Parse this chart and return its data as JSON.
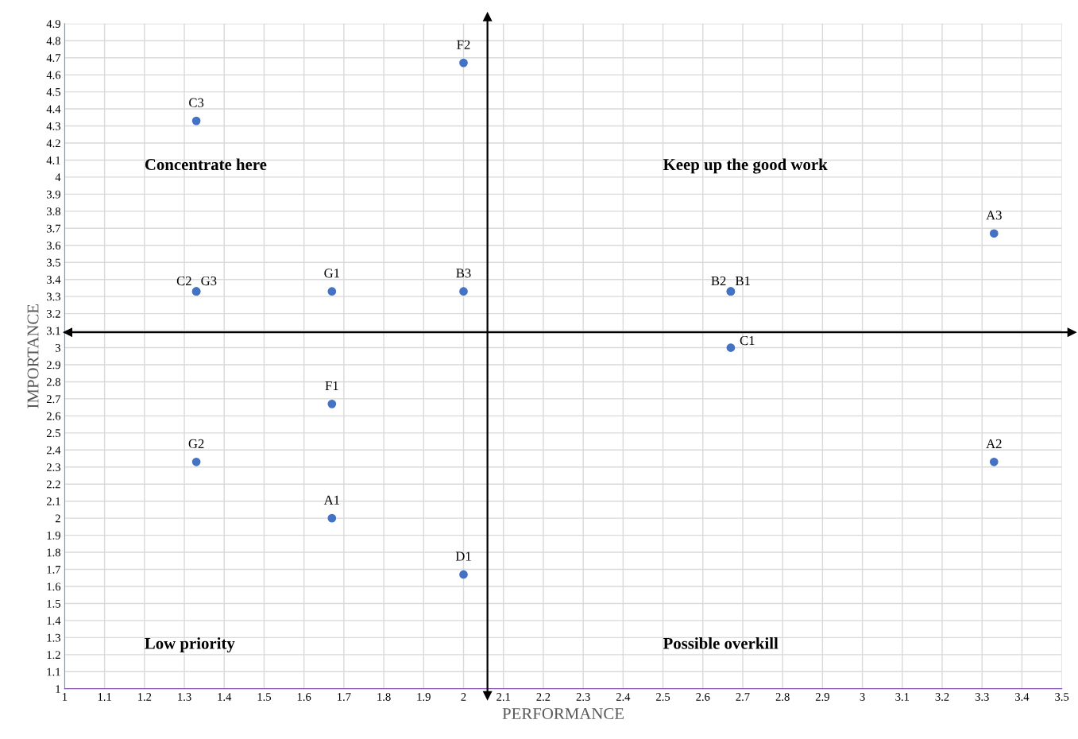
{
  "chart_data": {
    "type": "scatter",
    "xlabel": "PERFORMANCE",
    "ylabel": "IMPORTANCE",
    "x": [
      2,
      1.33,
      3.33,
      1.33,
      1.33,
      1.67,
      2,
      2.67,
      2.67,
      2.67,
      1.67,
      1.33,
      3.33,
      1.67,
      2
    ],
    "series": [
      {
        "color": "#4472c4",
        "values": [
          4.67,
          4.33,
          3.67,
          3.33,
          3.33,
          3.33,
          3.33,
          3.33,
          3.33,
          3,
          2.67,
          2.33,
          2.33,
          2,
          1.67
        ]
      }
    ],
    "annotations": [
      {
        "text": "F2",
        "x": 2,
        "y": 4.67
      },
      {
        "text": "C3",
        "x": 1.33,
        "y": 4.33
      },
      {
        "text": "A3",
        "x": 3.33,
        "y": 3.67
      },
      {
        "text": "C2",
        "x": 1.33,
        "y": 3.33
      },
      {
        "text": "G3",
        "x": 1.33,
        "y": 3.33
      },
      {
        "text": "G1",
        "x": 1.67,
        "y": 3.33
      },
      {
        "text": "B3",
        "x": 2,
        "y": 3.33
      },
      {
        "text": "B2",
        "x": 2.67,
        "y": 3.33
      },
      {
        "text": "B1",
        "x": 2.67,
        "y": 3.33
      },
      {
        "text": "C1",
        "x": 2.67,
        "y": 3
      },
      {
        "text": "F1",
        "x": 1.67,
        "y": 2.67
      },
      {
        "text": "G2",
        "x": 1.33,
        "y": 2.33
      },
      {
        "text": "A2",
        "x": 3.33,
        "y": 2.33
      },
      {
        "text": "A1",
        "x": 1.67,
        "y": 2
      },
      {
        "text": "D1",
        "x": 2,
        "y": 1.67
      },
      "Concentrate here",
      "Keep up the good work",
      "Low priority",
      "Possible overkill"
    ],
    "ref_lines": [
      {
        "axis": "x",
        "value": 2.06,
        "color": "#000000"
      },
      {
        "axis": "y",
        "value": 3.09,
        "color": "#000000"
      }
    ],
    "xlim": [
      1,
      3.5
    ],
    "ylim": [
      1,
      4.9
    ],
    "xticks": [
      1,
      1.1,
      1.2,
      1.3,
      1.4,
      1.5,
      1.6,
      1.7,
      1.8,
      1.9,
      2,
      2.1,
      2.2,
      2.3,
      2.4,
      2.5,
      2.6,
      2.7,
      2.8,
      2.9,
      3,
      3.1,
      3.2,
      3.3,
      3.4,
      3.5
    ],
    "yticks": [
      1,
      1.1,
      1.2,
      1.3,
      1.4,
      1.5,
      1.6,
      1.7,
      1.8,
      1.9,
      2,
      2.1,
      2.2,
      2.3,
      2.4,
      2.5,
      2.6,
      2.7,
      2.8,
      2.9,
      3,
      3.1,
      3.2,
      3.3,
      3.4,
      3.5,
      3.6,
      3.7,
      3.8,
      3.9,
      4,
      4.1,
      4.2,
      4.3,
      4.4,
      4.5,
      4.6,
      4.7,
      4.8,
      4.9
    ],
    "grid": true,
    "marker": "circle"
  }
}
